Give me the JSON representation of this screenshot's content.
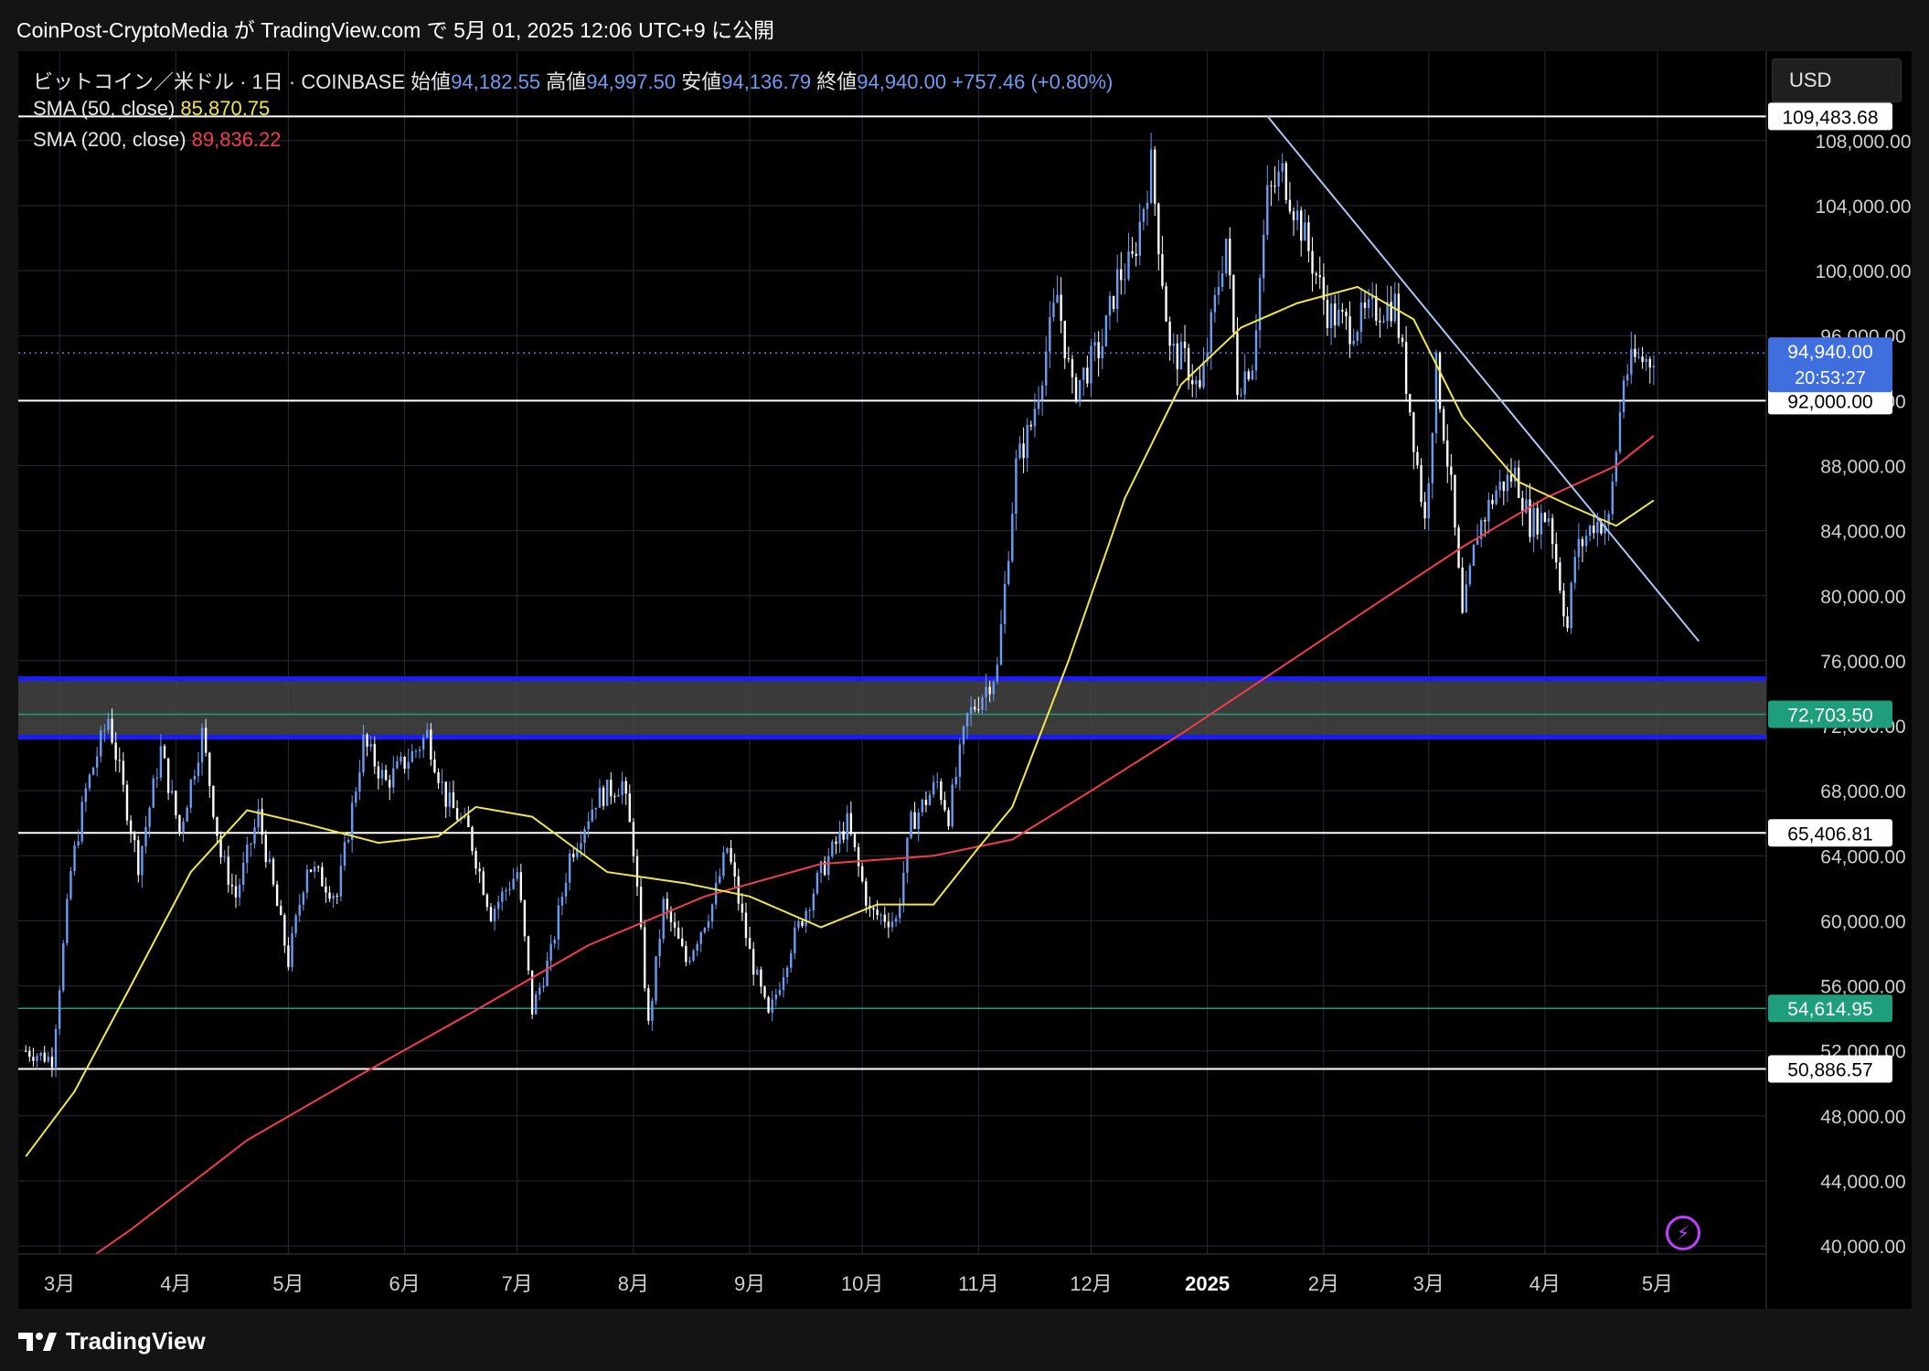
{
  "header": {
    "text": "CoinPost-CryptoMedia が TradingView.com で 5月 01, 2025 12:06 UTC+9 に公開"
  },
  "legend": {
    "symbol": "ビットコイン／米ドル · 1日 · COINBASE",
    "open_label": "始値",
    "open": "94,182.55",
    "high_label": "高値",
    "high": "94,997.50",
    "low_label": "安値",
    "low": "94,136.79",
    "close_label": "終値",
    "close": "94,940.00",
    "change": "+757.46 (+0.80%)",
    "sma50_label": "SMA (50, close)",
    "sma50_value": "85,870.75",
    "sma200_label": "SMA (200, close)",
    "sma200_value": "89,836.22"
  },
  "currency_button": "USD",
  "countdown": "20:53:27",
  "footer": {
    "brand": "TradingView"
  },
  "colors": {
    "up": "#6a9cf2",
    "down": "#ffffff",
    "sma50": "#f2e64c",
    "sma200": "#f23d4c",
    "zone": "#454545",
    "zone_border": "#1a1aff",
    "teal": "#1e9e7a",
    "trend": "#a9c7f2"
  },
  "chart_data": {
    "type": "candlestick",
    "y_axis": {
      "range": [
        39500,
        113500
      ],
      "ticks": [
        "40,000.00",
        "44,000.00",
        "48,000.00",
        "52,000.00",
        "56,000.00",
        "60,000.00",
        "64,000.00",
        "68,000.00",
        "72,000.00",
        "76,000.00",
        "80,000.00",
        "84,000.00",
        "88,000.00",
        "92,000.00",
        "96,000.00",
        "100,000.00",
        "104,000.00",
        "108,000.00"
      ]
    },
    "x_axis": {
      "labels": [
        "3月",
        "4月",
        "5月",
        "6月",
        "7月",
        "8月",
        "9月",
        "10月",
        "11月",
        "12月",
        "2025",
        "2月",
        "3月",
        "4月",
        "5月"
      ]
    },
    "price_levels": [
      {
        "value": 109483.68,
        "label": "109,483.68",
        "style": "white"
      },
      {
        "value": 92000.0,
        "label": "92,000.00",
        "style": "white"
      },
      {
        "value": 72703.5,
        "label": "72,703.50",
        "style": "teal"
      },
      {
        "value": 65406.81,
        "label": "65,406.81",
        "style": "white"
      },
      {
        "value": 54614.95,
        "label": "54,614.95",
        "style": "teal"
      },
      {
        "value": 50886.57,
        "label": "50,886.57",
        "style": "white"
      }
    ],
    "last_price": {
      "value": 94940.0,
      "label": "94,940.00"
    },
    "support_zone": [
      71300,
      74900
    ],
    "trendline": [
      {
        "date": "2025-01-17",
        "price": 109500
      },
      {
        "date": "2025-05-12",
        "price": 77200
      }
    ],
    "sma50_last": 85870.75,
    "sma200_last": 89836.22,
    "price_path": [
      [
        "2024-02-21",
        52000
      ],
      [
        "2024-02-28",
        51500
      ],
      [
        "2024-03-04",
        63000
      ],
      [
        "2024-03-08",
        68000
      ],
      [
        "2024-03-14",
        72500
      ],
      [
        "2024-03-18",
        68000
      ],
      [
        "2024-03-22",
        63500
      ],
      [
        "2024-03-28",
        70500
      ],
      [
        "2024-04-02",
        65500
      ],
      [
        "2024-04-08",
        71500
      ],
      [
        "2024-04-13",
        64000
      ],
      [
        "2024-04-17",
        61500
      ],
      [
        "2024-04-23",
        66500
      ],
      [
        "2024-05-01",
        57500
      ],
      [
        "2024-05-06",
        63500
      ],
      [
        "2024-05-14",
        61500
      ],
      [
        "2024-05-21",
        71000
      ],
      [
        "2024-05-27",
        68500
      ],
      [
        "2024-06-04",
        70500
      ],
      [
        "2024-06-07",
        71500
      ],
      [
        "2024-06-12",
        67500
      ],
      [
        "2024-06-18",
        65500
      ],
      [
        "2024-06-24",
        60500
      ],
      [
        "2024-07-01",
        63000
      ],
      [
        "2024-07-05",
        54500
      ],
      [
        "2024-07-10",
        58000
      ],
      [
        "2024-07-15",
        64000
      ],
      [
        "2024-07-22",
        67500
      ],
      [
        "2024-07-29",
        68500
      ],
      [
        "2024-08-01",
        64500
      ],
      [
        "2024-08-05",
        53500
      ],
      [
        "2024-08-09",
        61000
      ],
      [
        "2024-08-15",
        57500
      ],
      [
        "2024-08-22",
        61000
      ],
      [
        "2024-08-26",
        64500
      ],
      [
        "2024-09-01",
        58000
      ],
      [
        "2024-09-06",
        54000
      ],
      [
        "2024-09-12",
        58500
      ],
      [
        "2024-09-20",
        63000
      ],
      [
        "2024-09-27",
        66000
      ],
      [
        "2024-10-03",
        60500
      ],
      [
        "2024-10-10",
        60000
      ],
      [
        "2024-10-14",
        66000
      ],
      [
        "2024-10-21",
        68500
      ],
      [
        "2024-10-24",
        66500
      ],
      [
        "2024-10-29",
        72500
      ],
      [
        "2024-11-06",
        75500
      ],
      [
        "2024-11-11",
        88000
      ],
      [
        "2024-11-15",
        90500
      ],
      [
        "2024-11-22",
        98500
      ],
      [
        "2024-11-26",
        92500
      ],
      [
        "2024-12-04",
        95500
      ],
      [
        "2024-12-08",
        99500
      ],
      [
        "2024-12-12",
        100500
      ],
      [
        "2024-12-17",
        106500
      ],
      [
        "2024-12-22",
        95000
      ],
      [
        "2024-12-26",
        94500
      ],
      [
        "2024-12-30",
        92500
      ],
      [
        "2025-01-06",
        102000
      ],
      [
        "2025-01-09",
        93000
      ],
      [
        "2025-01-13",
        94500
      ],
      [
        "2025-01-17",
        104500
      ],
      [
        "2025-01-21",
        106000
      ],
      [
        "2025-01-27",
        102000
      ],
      [
        "2025-02-02",
        97500
      ],
      [
        "2025-02-08",
        96500
      ],
      [
        "2025-02-14",
        97500
      ],
      [
        "2025-02-20",
        98000
      ],
      [
        "2025-02-24",
        91500
      ],
      [
        "2025-02-28",
        84500
      ],
      [
        "2025-03-03",
        94000
      ],
      [
        "2025-03-07",
        86500
      ],
      [
        "2025-03-10",
        78500
      ],
      [
        "2025-03-14",
        84000
      ],
      [
        "2025-03-19",
        86500
      ],
      [
        "2025-03-24",
        87500
      ],
      [
        "2025-03-28",
        84500
      ],
      [
        "2025-04-02",
        85000
      ],
      [
        "2025-04-07",
        78000
      ],
      [
        "2025-04-09",
        82500
      ],
      [
        "2025-04-14",
        84500
      ],
      [
        "2025-04-18",
        84500
      ],
      [
        "2025-04-22",
        93500
      ],
      [
        "2025-04-25",
        94500
      ],
      [
        "2025-04-29",
        94500
      ],
      [
        "2025-04-30",
        94940
      ]
    ],
    "sma50_path": [
      [
        "2024-02-21",
        45500
      ],
      [
        "2024-03-05",
        49500
      ],
      [
        "2024-03-20",
        56000
      ],
      [
        "2024-04-05",
        63000
      ],
      [
        "2024-04-20",
        66800
      ],
      [
        "2024-05-05",
        66000
      ],
      [
        "2024-05-25",
        64800
      ],
      [
        "2024-06-10",
        65200
      ],
      [
        "2024-06-20",
        67000
      ],
      [
        "2024-07-05",
        66400
      ],
      [
        "2024-07-25",
        63000
      ],
      [
        "2024-08-15",
        62300
      ],
      [
        "2024-09-01",
        61500
      ],
      [
        "2024-09-20",
        59600
      ],
      [
        "2024-10-05",
        61000
      ],
      [
        "2024-10-20",
        61000
      ],
      [
        "2024-11-01",
        64500
      ],
      [
        "2024-11-10",
        67000
      ],
      [
        "2024-11-25",
        76000
      ],
      [
        "2024-12-10",
        86000
      ],
      [
        "2024-12-25",
        93000
      ],
      [
        "2025-01-10",
        96500
      ],
      [
        "2025-01-25",
        98000
      ],
      [
        "2025-02-10",
        99000
      ],
      [
        "2025-02-25",
        97000
      ],
      [
        "2025-03-10",
        91000
      ],
      [
        "2025-03-25",
        87000
      ],
      [
        "2025-04-08",
        85500
      ],
      [
        "2025-04-20",
        84300
      ],
      [
        "2025-04-30",
        85870.75
      ]
    ],
    "sma200_path": [
      [
        "2024-02-21",
        36500
      ],
      [
        "2024-03-20",
        41000
      ],
      [
        "2024-04-20",
        46500
      ],
      [
        "2024-05-20",
        50500
      ],
      [
        "2024-06-20",
        54500
      ],
      [
        "2024-07-20",
        58500
      ],
      [
        "2024-08-20",
        61500
      ],
      [
        "2024-09-20",
        63500
      ],
      [
        "2024-10-20",
        64000
      ],
      [
        "2024-11-10",
        65000
      ],
      [
        "2024-12-01",
        68000
      ],
      [
        "2024-12-25",
        71500
      ],
      [
        "2025-01-20",
        75500
      ],
      [
        "2025-02-15",
        79500
      ],
      [
        "2025-03-10",
        83000
      ],
      [
        "2025-04-01",
        86000
      ],
      [
        "2025-04-20",
        88000
      ],
      [
        "2025-04-30",
        89836.22
      ]
    ]
  }
}
